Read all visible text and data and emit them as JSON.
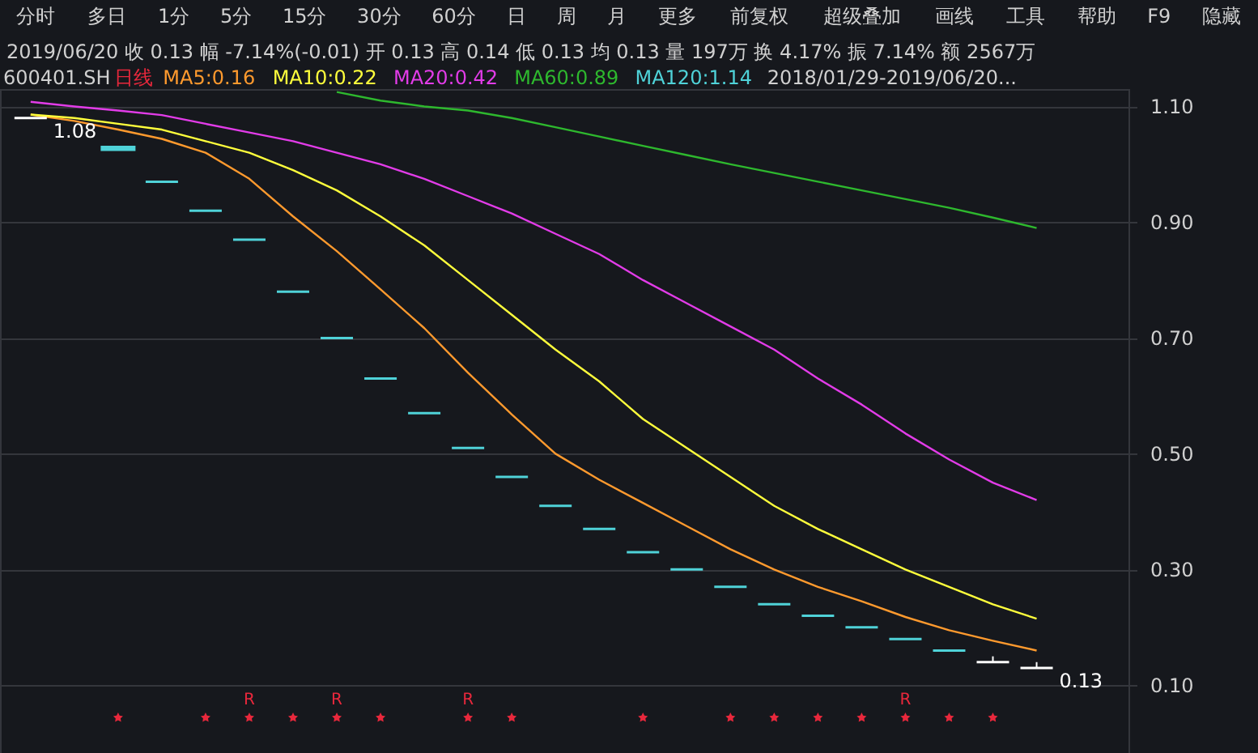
{
  "chart_data": {
    "type": "line",
    "title": "600401.SH",
    "legend_title": "日线",
    "subtitle": "2019/06/20  收 0.13  幅 -7.14%(-0.01)  开 0.13  高 0.14  低 0.13  均 0.13  量 197万  换 4.17%  振 7.14%  额 2567万",
    "annotations": [
      "分时",
      "多日",
      "1分",
      "5分",
      "15分",
      "30分",
      "60分",
      "日",
      "周",
      "月",
      "更多",
      "前复权",
      "超级叠加",
      "画线",
      "工具",
      "帮助",
      "F9",
      "隐藏",
      "2018/01/29-2019/06/20..."
    ],
    "categories": [
      null,
      null,
      null,
      null,
      null,
      null,
      null,
      null,
      null,
      null,
      null,
      null,
      null,
      null,
      null,
      null,
      null,
      null,
      null,
      null,
      null,
      null,
      null,
      null
    ],
    "series": [
      {
        "name": "MA5:0.16",
        "color": "#ff9a2e",
        "values": [
          1.086,
          1.075,
          1.06,
          1.044,
          1.02,
          0.975,
          0.91,
          0.85,
          0.784,
          0.717,
          0.64,
          0.568,
          0.5,
          0.455,
          0.415,
          0.375,
          0.335,
          0.3,
          0.27,
          0.245,
          0.218,
          0.195,
          0.177,
          0.16
        ]
      },
      {
        "name": "MA10:0.22",
        "color": "#ffff3c",
        "values": [
          1.086,
          1.08,
          1.07,
          1.06,
          1.04,
          1.02,
          0.99,
          0.955,
          0.91,
          0.86,
          0.8,
          0.74,
          0.68,
          0.625,
          0.56,
          0.51,
          0.46,
          0.41,
          0.37,
          0.335,
          0.3,
          0.27,
          0.24,
          0.215
        ]
      },
      {
        "name": "MA20:0.42",
        "color": "#e23ce8",
        "values": [
          1.108,
          1.1,
          1.093,
          1.085,
          1.07,
          1.055,
          1.04,
          1.02,
          1.0,
          0.975,
          0.945,
          0.915,
          0.88,
          0.845,
          0.8,
          0.76,
          0.72,
          0.68,
          0.63,
          0.585,
          0.535,
          0.49,
          0.45,
          0.42
        ]
      },
      {
        "name": "MA60:0.89",
        "color": "#2eb82e",
        "values": [
          null,
          null,
          null,
          null,
          null,
          null,
          null,
          1.125,
          1.11,
          1.1,
          1.093,
          1.08,
          1.064,
          1.048,
          1.032,
          1.016,
          1.0,
          0.985,
          0.97,
          0.955,
          0.94,
          0.925,
          0.908,
          0.89
        ]
      },
      {
        "name": "MA120:1.14",
        "color": "#4fd2d8",
        "values": [
          null,
          null,
          null,
          null,
          null,
          null,
          null,
          null,
          null,
          null,
          null,
          null,
          null,
          null,
          null,
          null,
          null,
          null,
          null,
          null,
          null,
          null,
          null,
          null
        ]
      },
      {
        "type": "candlestick",
        "ohlc": [
          [
            1.08,
            1.08,
            1.08,
            1.08
          ],
          null,
          [
            1.03,
            1.03,
            1.025,
            1.025
          ],
          [
            0.97,
            0.97,
            0.97,
            0.97
          ],
          [
            0.92,
            0.92,
            0.92,
            0.92
          ],
          [
            0.87,
            0.87,
            0.87,
            0.87
          ],
          [
            0.78,
            0.78,
            0.78,
            0.78
          ],
          [
            0.7,
            0.7,
            0.7,
            0.7
          ],
          [
            0.63,
            0.63,
            0.63,
            0.63
          ],
          [
            0.57,
            0.57,
            0.57,
            0.57
          ],
          [
            0.51,
            0.51,
            0.51,
            0.51
          ],
          [
            0.46,
            0.46,
            0.46,
            0.46
          ],
          [
            0.41,
            0.41,
            0.41,
            0.41
          ],
          [
            0.37,
            0.37,
            0.37,
            0.37
          ],
          [
            0.33,
            0.33,
            0.33,
            0.33
          ],
          [
            0.3,
            0.3,
            0.3,
            0.3
          ],
          [
            0.27,
            0.27,
            0.27,
            0.27
          ],
          [
            0.24,
            0.24,
            0.24,
            0.24
          ],
          [
            0.22,
            0.22,
            0.22,
            0.22
          ],
          [
            0.2,
            0.2,
            0.2,
            0.2
          ],
          [
            0.18,
            0.18,
            0.18,
            0.18
          ],
          [
            0.16,
            0.16,
            0.16,
            0.16
          ],
          [
            0.14,
            0.15,
            0.14,
            0.14
          ],
          [
            0.13,
            0.14,
            0.13,
            0.13
          ]
        ],
        "colors": [
          "#ffffff",
          "#4fd2d8",
          "#4fd2d8",
          "#4fd2d8",
          "#4fd2d8",
          "#4fd2d8",
          "#4fd2d8",
          "#4fd2d8",
          "#4fd2d8",
          "#4fd2d8",
          "#4fd2d8",
          "#4fd2d8",
          "#4fd2d8",
          "#4fd2d8",
          "#4fd2d8",
          "#4fd2d8",
          "#4fd2d8",
          "#4fd2d8",
          "#4fd2d8",
          "#4fd2d8",
          "#4fd2d8",
          "#4fd2d8",
          "#ffffff",
          "#ffffff"
        ],
        "value_labels": [
          "1.08",
          null,
          null,
          null,
          null,
          null,
          null,
          null,
          null,
          null,
          null,
          null,
          null,
          null,
          null,
          null,
          null,
          null,
          null,
          null,
          null,
          null,
          null,
          "0.13"
        ]
      },
      {
        "type": "scatter",
        "marker": "star",
        "color": "#e8283c",
        "values": [
          null,
          null,
          0.044,
          null,
          0.044,
          0.044,
          0.044,
          0.044,
          0.044,
          null,
          0.044,
          0.044,
          null,
          null,
          0.044,
          null,
          0.044,
          0.044,
          0.044,
          0.044,
          0.044,
          0.044,
          0.044,
          null
        ],
        "value_labels": [
          null,
          null,
          null,
          null,
          null,
          "R",
          null,
          "R",
          null,
          null,
          "R",
          null,
          null,
          null,
          null,
          null,
          null,
          null,
          null,
          null,
          "R",
          null,
          null,
          null
        ]
      }
    ],
    "ylim": [
      -0.017,
      1.13
    ],
    "yticks": [
      {
        "value": 0.1,
        "label": "0.10"
      },
      {
        "value": 0.3,
        "label": "0.30"
      },
      {
        "value": 0.5,
        "label": "0.50"
      },
      {
        "value": 0.7,
        "label": "0.70"
      },
      {
        "value": 0.9,
        "label": "0.90"
      },
      {
        "value": 1.1,
        "label": "1.10"
      }
    ],
    "grid": "y",
    "legend": "top left",
    "tick_labels": "y"
  }
}
